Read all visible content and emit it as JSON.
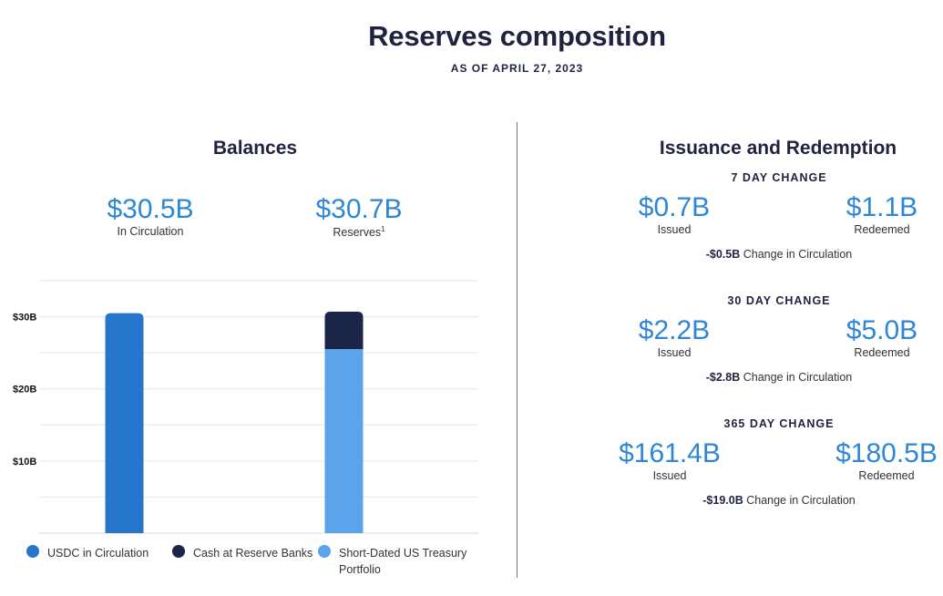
{
  "header": {
    "title": "Reserves composition",
    "as_of": "AS OF APRIL 27, 2023"
  },
  "balances": {
    "title": "Balances",
    "circulation": {
      "value": "$30.5B",
      "label": "In Circulation"
    },
    "reserves": {
      "value": "$30.7B",
      "label": "Reserves",
      "footnote": "1"
    }
  },
  "chart_data": {
    "type": "bar",
    "stacked": true,
    "categories": [
      "",
      ""
    ],
    "series": [
      {
        "name": "USDC in Circulation",
        "color": "#2677cc",
        "values": [
          30.5,
          0
        ]
      },
      {
        "name": "Short-Dated US Treasury Portfolio",
        "color": "#5ba3ea",
        "values": [
          0,
          25.5
        ]
      },
      {
        "name": "Cash at Reserve Banks",
        "color": "#1a2547",
        "values": [
          0,
          5.2
        ]
      }
    ],
    "yticks": [
      {
        "value": 10,
        "label": "$10B"
      },
      {
        "value": 20,
        "label": "$20B"
      },
      {
        "value": 30,
        "label": "$30B"
      }
    ],
    "ylim": [
      0,
      35
    ],
    "unit": "billions USD",
    "grid": true,
    "legend_position": "bottom"
  },
  "legend": [
    {
      "label": "USDC in Circulation",
      "color": "#2677cc"
    },
    {
      "label": "Cash at Reserve Banks",
      "color": "#1a2547"
    },
    {
      "label": "Short-Dated US Treasury Portfolio",
      "color": "#5ba3ea"
    }
  ],
  "issuance": {
    "title": "Issuance and Redemption",
    "periods": [
      {
        "title": "7 DAY CHANGE",
        "issued": "$0.7B",
        "issued_label": "Issued",
        "redeemed": "$1.1B",
        "redeemed_label": "Redeemed",
        "change": "-$0.5B",
        "change_label": "Change in Circulation"
      },
      {
        "title": "30 DAY CHANGE",
        "issued": "$2.2B",
        "issued_label": "Issued",
        "redeemed": "$5.0B",
        "redeemed_label": "Redeemed",
        "change": "-$2.8B",
        "change_label": "Change in Circulation"
      },
      {
        "title": "365 DAY CHANGE",
        "issued": "$161.4B",
        "issued_label": "Issued",
        "redeemed": "$180.5B",
        "redeemed_label": "Redeemed",
        "change": "-$19.0B",
        "change_label": "Change in Circulation"
      }
    ]
  }
}
